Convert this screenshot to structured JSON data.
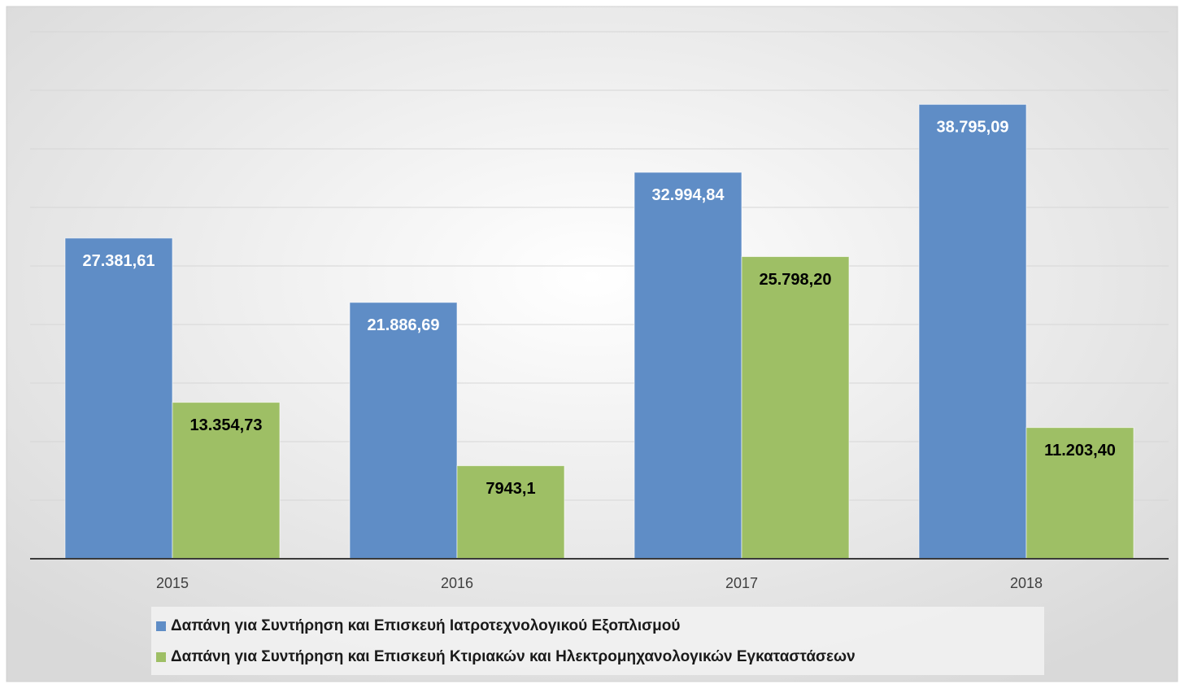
{
  "chart_data": {
    "type": "bar",
    "categories": [
      "2015",
      "2016",
      "2017",
      "2018"
    ],
    "series": [
      {
        "name": "Δαπάνη για Συντήρηση και Επισκευή Ιατροτεχνολογικού Εξοπλισμού",
        "color": "#5f8dc6",
        "values": [
          27381.61,
          21886.69,
          32994.84,
          38795.09
        ],
        "value_labels": [
          "27.381,61",
          "21.886,69",
          "32.994,84",
          "38.795,09"
        ]
      },
      {
        "name": "Δαπάνη για Συντήρηση και Επισκευή Κτιριακών και Ηλεκτρομηχανολογικών Εγκαταστάσεων",
        "color": "#9ebf65",
        "values": [
          13354.73,
          7943.1,
          25798.2,
          11203.4
        ],
        "value_labels": [
          "13.354,73",
          "7943,1",
          "25.798,20",
          "11.203,40"
        ]
      }
    ],
    "ylim": [
      0,
      45000
    ],
    "yticks": [
      0,
      5000,
      10000,
      15000,
      20000,
      25000,
      30000,
      35000,
      40000,
      45000
    ],
    "grid": true
  }
}
